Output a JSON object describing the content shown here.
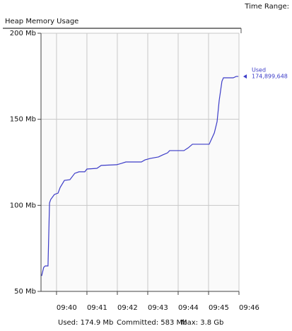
{
  "toolbar": {
    "time_range_label": "Time Range:"
  },
  "chart_data": {
    "type": "line",
    "title": "Heap Memory Usage",
    "x": [
      579.51,
      579.58,
      579.63,
      579.72,
      579.77,
      579.81,
      579.93,
      580.05,
      580.12,
      580.26,
      580.44,
      580.6,
      580.74,
      580.93,
      581.0,
      581.33,
      581.47,
      581.98,
      582.14,
      582.28,
      582.79,
      582.91,
      583.09,
      583.35,
      583.49,
      583.65,
      583.72,
      584.19,
      584.33,
      584.47,
      585.02,
      585.19,
      585.28,
      585.35,
      585.44,
      585.49,
      585.81,
      585.91,
      585.98
    ],
    "series": [
      {
        "name": "Used",
        "color": "#3c3cc8",
        "values": [
          59.0,
          64.0,
          64.8,
          64.8,
          101.4,
          103.4,
          106.3,
          107.1,
          110.4,
          114.5,
          114.9,
          118.6,
          119.5,
          119.5,
          121.1,
          121.5,
          123.2,
          123.6,
          124.4,
          125.2,
          125.2,
          126.4,
          127.3,
          128.1,
          129.3,
          130.5,
          131.8,
          131.8,
          133.4,
          135.5,
          135.5,
          142.1,
          148.6,
          161.0,
          172.1,
          174.1,
          174.1,
          174.9,
          174.9
        ]
      }
    ],
    "annotation": {
      "label": "Used",
      "value_label": "174,899,648"
    },
    "xlim": [
      579.49,
      586
    ],
    "xticks": [
      {
        "value": 580,
        "label": "09:40"
      },
      {
        "value": 581,
        "label": "09:41"
      },
      {
        "value": 582,
        "label": "09:42"
      },
      {
        "value": 583,
        "label": "09:43"
      },
      {
        "value": 584,
        "label": "09:44"
      },
      {
        "value": 585,
        "label": "09:45"
      },
      {
        "value": 586,
        "label": "09:46"
      }
    ],
    "ylim": [
      50,
      200
    ],
    "yticks": [
      {
        "value": 50,
        "label": "50 Mb"
      },
      {
        "value": 100,
        "label": "100 Mb"
      },
      {
        "value": 150,
        "label": "150 Mb"
      },
      {
        "value": 200,
        "label": "200 Mb"
      }
    ],
    "grid": true,
    "footer": [
      "Used: 174.9 Mb",
      "Committed: 583 Mb",
      "Max: 3.8 Gb"
    ]
  }
}
